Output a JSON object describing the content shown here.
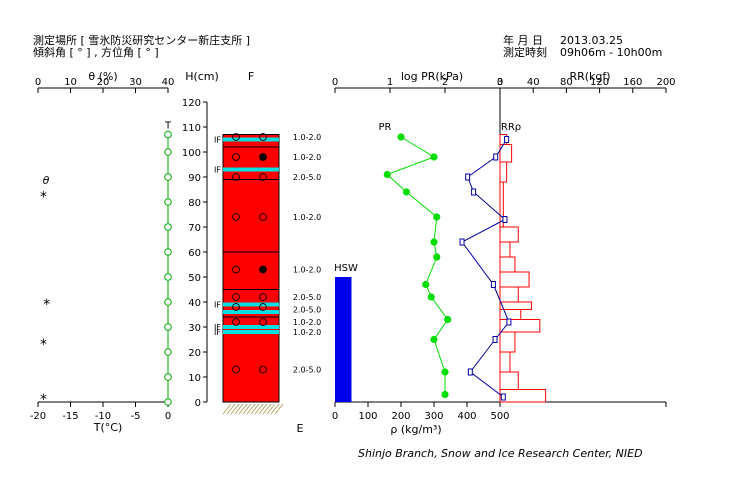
{
  "header": {
    "site": "測定場所 [ 雪氷防災研究センター新庄支所 ]",
    "angles": "傾斜角 [ ° ] , 方位角 [ ° ]",
    "date_label": "年 月 日",
    "date_value": "2013.03.25",
    "time_label": "測定時刻",
    "time_value": "09h06m - 10h00m"
  },
  "credit": "Shinjo Branch, Snow and Ice Research Center, NIED",
  "colors": {
    "snow": "#ff0000",
    "ice_layer": "#00e0e0",
    "hardness_pr": "#00dd00",
    "density": "#0000a0",
    "ram": "#ff0000",
    "hsw_bar": "#0000ee",
    "temperature": "#00aa00",
    "ground": "#b8a060"
  },
  "chart_data": [
    {
      "type": "scatter",
      "name": "angle-panel",
      "xlabel": "θ (%)",
      "xticks": [
        0,
        10,
        20,
        30,
        40
      ],
      "xlim": [
        0,
        40
      ],
      "series_label": "θ",
      "points": [
        {
          "x": 2,
          "y": 83
        },
        {
          "x": 3,
          "y": 40
        },
        {
          "x": 2,
          "y": 24
        },
        {
          "x": 2,
          "y": 2
        }
      ]
    },
    {
      "type": "line",
      "name": "temperature-panel",
      "xlabel": "T(°C)",
      "xticks": [
        -20,
        -15,
        -10,
        -5,
        0
      ],
      "xlim": [
        -20,
        0
      ],
      "series_label": "T",
      "points": [
        {
          "x": 0,
          "y": 107
        },
        {
          "x": 0,
          "y": 100
        },
        {
          "x": 0,
          "y": 90
        },
        {
          "x": 0,
          "y": 80
        },
        {
          "x": 0,
          "y": 70
        },
        {
          "x": 0,
          "y": 60
        },
        {
          "x": 0,
          "y": 50
        },
        {
          "x": 0,
          "y": 40
        },
        {
          "x": 0,
          "y": 30
        },
        {
          "x": 0,
          "y": 20
        },
        {
          "x": 0,
          "y": 10
        },
        {
          "x": 0,
          "y": 0
        }
      ]
    },
    {
      "type": "table",
      "name": "snow-profile",
      "ylabel": "H(cm)",
      "yticks": [
        0,
        10,
        20,
        30,
        40,
        50,
        60,
        70,
        80,
        90,
        100,
        110,
        120
      ],
      "ylim": [
        0,
        120
      ],
      "column_label": "F",
      "bottom_label": "E",
      "snow_height": 107,
      "ice_layers": [
        105,
        93,
        39,
        36,
        30,
        28
      ],
      "if_labels": [
        {
          "text": "IF",
          "y": 105
        },
        {
          "text": "IF",
          "y": 93
        },
        {
          "text": "IF",
          "y": 39
        },
        {
          "text": "IF",
          "y": 30
        },
        {
          "text": "IF",
          "y": 28
        }
      ],
      "layer_lines": [
        102,
        93,
        89,
        60,
        45,
        39,
        36,
        34,
        30,
        28
      ],
      "grain_symbols": [
        {
          "y": 106,
          "filled": [
            false,
            false
          ]
        },
        {
          "y": 98,
          "filled": [
            false,
            true
          ]
        },
        {
          "y": 90,
          "filled": [
            false,
            false
          ]
        },
        {
          "y": 74,
          "filled": [
            false,
            false
          ]
        },
        {
          "y": 53,
          "filled": [
            false,
            true
          ]
        },
        {
          "y": 42,
          "filled": [
            false,
            false
          ]
        },
        {
          "y": 38,
          "filled": [
            false,
            false
          ]
        },
        {
          "y": 32,
          "filled": [
            false,
            false
          ]
        },
        {
          "y": 13,
          "filled": [
            false,
            false
          ]
        }
      ],
      "grain_sizes": [
        {
          "y": 106,
          "text": "1.0-2.0"
        },
        {
          "y": 98,
          "text": "1.0-2.0"
        },
        {
          "y": 90,
          "text": "2.0-5.0"
        },
        {
          "y": 74,
          "text": "1.0-2.0"
        },
        {
          "y": 53,
          "text": "1.0-2.0"
        },
        {
          "y": 42,
          "text": "2.0-5.0"
        },
        {
          "y": 37,
          "text": "2.0-5.0"
        },
        {
          "y": 32,
          "text": "1.0-2.0"
        },
        {
          "y": 28,
          "text": "1.0-2.0"
        },
        {
          "y": 13,
          "text": "2.0-5.0"
        }
      ]
    },
    {
      "type": "line",
      "name": "pr-density-panel",
      "top_label": "log PR(kPa)",
      "top_ticks": [
        0,
        1,
        2,
        3
      ],
      "top_lim": [
        0,
        3
      ],
      "bottom_label": "ρ (kg/m³)",
      "bottom_ticks": [
        0,
        100,
        200,
        300,
        400,
        500
      ],
      "bottom_lim": [
        0,
        500
      ],
      "hsw": {
        "label": "HSW",
        "height": 50,
        "x_range": [
          0,
          50
        ]
      },
      "series": [
        {
          "name": "PR",
          "points": [
            {
              "y": 106,
              "x": 1.2
            },
            {
              "y": 98,
              "x": 1.8
            },
            {
              "y": 91,
              "x": 0.95
            },
            {
              "y": 84,
              "x": 1.3
            },
            {
              "y": 74,
              "x": 1.85
            },
            {
              "y": 64,
              "x": 1.8
            },
            {
              "y": 58,
              "x": 1.85
            },
            {
              "y": 47,
              "x": 1.65
            },
            {
              "y": 42,
              "x": 1.75
            },
            {
              "y": 33,
              "x": 2.05
            },
            {
              "y": 25,
              "x": 1.8
            },
            {
              "y": 12,
              "x": 2.0
            },
            {
              "y": 3,
              "x": 2.0
            }
          ]
        }
      ]
    },
    {
      "type": "line",
      "name": "ram-panel",
      "top_label": "RR(kgf)",
      "top_ticks": [
        0,
        40,
        80,
        120,
        160,
        200
      ],
      "xlim": [
        0,
        200
      ],
      "series": [
        {
          "name": "ρ",
          "label": "RRρ",
          "points": [
            {
              "y": 105,
              "x": 520
            },
            {
              "y": 98,
              "x": 487
            },
            {
              "y": 90,
              "x": 402
            },
            {
              "y": 84,
              "x": 420
            },
            {
              "y": 73,
              "x": 515
            },
            {
              "y": 64,
              "x": 385
            },
            {
              "y": 47,
              "x": 480
            },
            {
              "y": 32,
              "x": 527
            },
            {
              "y": 25,
              "x": 485
            },
            {
              "y": 12,
              "x": 410
            },
            {
              "y": 2,
              "x": 510
            }
          ]
        },
        {
          "name": "RR",
          "steps": [
            {
              "y0": 103,
              "y1": 107,
              "x": 8
            },
            {
              "y0": 96,
              "y1": 103,
              "x": 14
            },
            {
              "y0": 88,
              "y1": 96,
              "x": 8
            },
            {
              "y0": 70,
              "y1": 88,
              "x": 4
            },
            {
              "y0": 64,
              "y1": 70,
              "x": 22
            },
            {
              "y0": 58,
              "y1": 64,
              "x": 12
            },
            {
              "y0": 52,
              "y1": 58,
              "x": 18
            },
            {
              "y0": 46,
              "y1": 52,
              "x": 35
            },
            {
              "y0": 40,
              "y1": 46,
              "x": 22
            },
            {
              "y0": 37,
              "y1": 40,
              "x": 38
            },
            {
              "y0": 33,
              "y1": 37,
              "x": 25
            },
            {
              "y0": 28,
              "y1": 33,
              "x": 48
            },
            {
              "y0": 20,
              "y1": 28,
              "x": 18
            },
            {
              "y0": 12,
              "y1": 20,
              "x": 12
            },
            {
              "y0": 5,
              "y1": 12,
              "x": 22
            },
            {
              "y0": 0,
              "y1": 5,
              "x": 55
            }
          ]
        }
      ]
    }
  ]
}
